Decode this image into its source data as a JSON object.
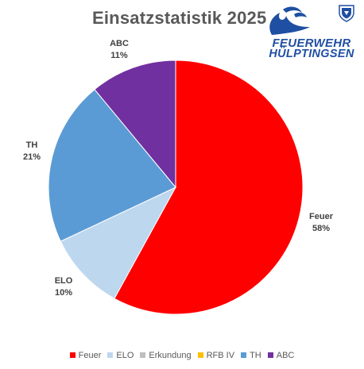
{
  "chart_data": {
    "type": "pie",
    "title": "Einsatzstatistik 2025",
    "slices": [
      {
        "label": "Feuer",
        "value": 58,
        "value_label": "58%",
        "color": "#ff0000"
      },
      {
        "label": "ELO",
        "value": 10,
        "value_label": "10%",
        "color": "#bdd7ee"
      },
      {
        "label": "Erkundung",
        "value": 0,
        "value_label": "",
        "color": "#bfbfbf"
      },
      {
        "label": "RFB IV",
        "value": 0,
        "value_label": "",
        "color": "#ffc000"
      },
      {
        "label": "TH",
        "value": 21,
        "value_label": "21%",
        "color": "#5b9bd5"
      },
      {
        "label": "ABC",
        "value": 11,
        "value_label": "11%",
        "color": "#7030a0"
      }
    ],
    "legend": {
      "position": "bottom",
      "entries": [
        {
          "label": "Feuer",
          "color": "#ff0000"
        },
        {
          "label": "ELO",
          "color": "#bdd7ee"
        },
        {
          "label": "Erkundung",
          "color": "#bfbfbf"
        },
        {
          "label": "RFB IV",
          "color": "#ffc000"
        },
        {
          "label": "TH",
          "color": "#5b9bd5"
        },
        {
          "label": "ABC",
          "color": "#7030a0"
        }
      ]
    }
  },
  "logo": {
    "line1": "FEUERWEHR",
    "line2": "HÜLPTINGSEN",
    "icon": "flame-icon",
    "crest": "crest-icon",
    "color": "#1f4fa3"
  }
}
